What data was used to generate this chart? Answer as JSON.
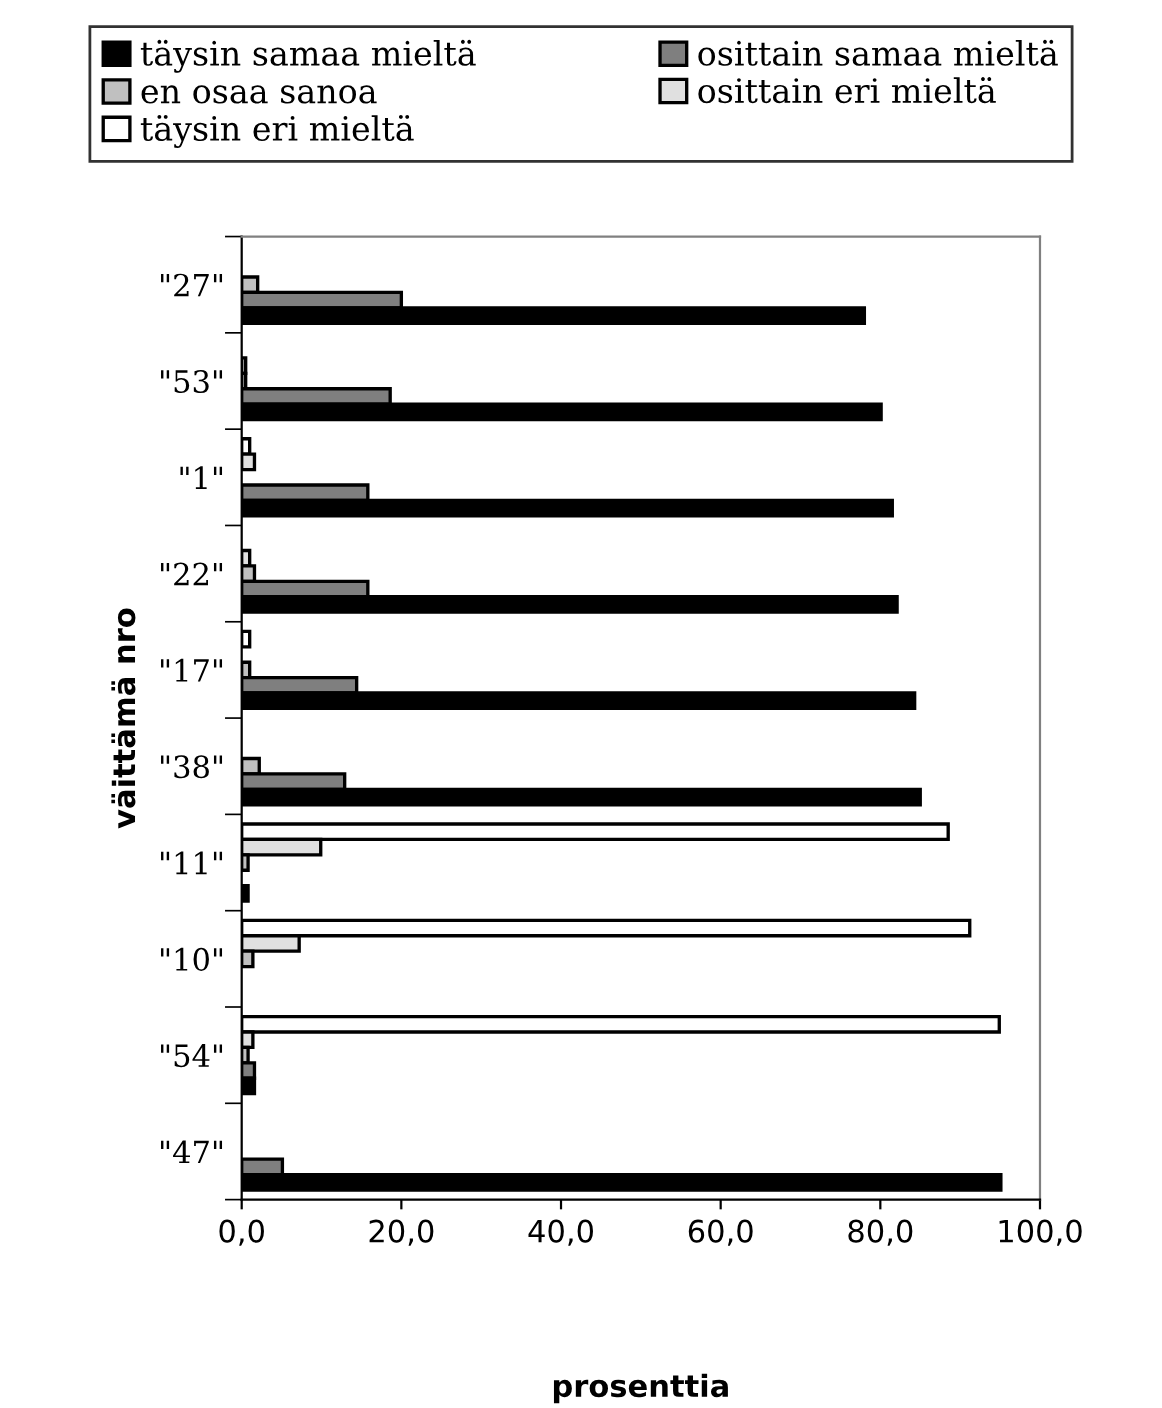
{
  "chart_data": {
    "type": "bar",
    "orientation": "horizontal",
    "xlabel": "prosenttia",
    "ylabel": "väittämä nro",
    "categories": [
      "\"27\"",
      "\"53\"",
      "\"1\"",
      "\"22\"",
      "\"17\"",
      "\"38\"",
      "\"11\"",
      "\"10\"",
      "\"54\"",
      "\"47\""
    ],
    "series": [
      {
        "name": "täysin eri mieltä",
        "color": "#ffffff",
        "values": [
          0,
          0,
          1.0,
          0,
          1.0,
          0,
          88.5,
          91.2,
          94.9,
          0
        ]
      },
      {
        "name": "osittain eri mieltä",
        "color": "#e0e0e0",
        "values": [
          0,
          0.5,
          1.6,
          1.0,
          0,
          0,
          9.9,
          7.2,
          1.4,
          0
        ]
      },
      {
        "name": "en osaa sanoa",
        "color": "#c0c0c0",
        "values": [
          2.0,
          0.5,
          0,
          1.6,
          1.0,
          2.2,
          0.8,
          1.4,
          0.8,
          0
        ]
      },
      {
        "name": "osittain samaa mieltä",
        "color": "#7f7f7f",
        "values": [
          20.0,
          18.6,
          15.8,
          15.8,
          14.4,
          12.9,
          0,
          0,
          1.6,
          5.1
        ]
      },
      {
        "name": "täysin samaa mieltä",
        "color": "#000000",
        "values": [
          78.0,
          80.1,
          81.5,
          82.1,
          84.3,
          85.0,
          0.8,
          0,
          1.6,
          95.1
        ]
      }
    ],
    "xlim": [
      0,
      100
    ],
    "xticks": [
      {
        "value": 0,
        "label": "0,0"
      },
      {
        "value": 20,
        "label": "20,0"
      },
      {
        "value": 40,
        "label": "40,0"
      },
      {
        "value": 60,
        "label": "60,0"
      },
      {
        "value": 80,
        "label": "80,0"
      },
      {
        "value": 100,
        "label": "100,0"
      }
    ],
    "legend": "top",
    "grid": false
  }
}
